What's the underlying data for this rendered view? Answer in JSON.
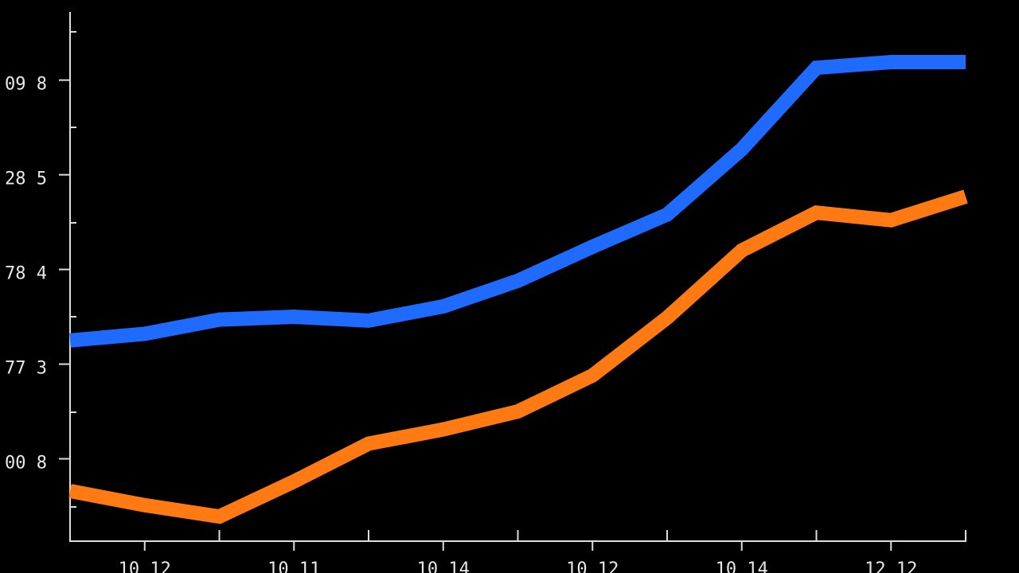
{
  "chart_data": {
    "type": "line",
    "categories": [
      null,
      "10 12",
      null,
      "10 11",
      null,
      "10 14",
      null,
      "10 12",
      null,
      "10 14",
      null,
      "12 12",
      null
    ],
    "series": [
      {
        "color": "#1f6bff",
        "values": [
          1.25,
          1.32,
          1.47,
          1.5,
          1.46,
          1.61,
          1.88,
          2.24,
          2.58,
          3.27,
          4.13,
          4.19,
          4.19
        ]
      },
      {
        "color": "#ff7a12",
        "values": [
          -0.34,
          -0.49,
          -0.61,
          -0.24,
          0.16,
          0.31,
          0.5,
          0.88,
          1.49,
          2.2,
          2.6,
          2.52,
          2.77
        ]
      }
    ],
    "ylim": [
      -0.87,
      4.72
    ],
    "yticks": [
      {
        "value": 0,
        "label": "00 8"
      },
      {
        "value": 1,
        "label": "77 3"
      },
      {
        "value": 2,
        "label": "78 4"
      },
      {
        "value": 3,
        "label": "28 5"
      },
      {
        "value": 4,
        "label": "09 8"
      }
    ]
  }
}
